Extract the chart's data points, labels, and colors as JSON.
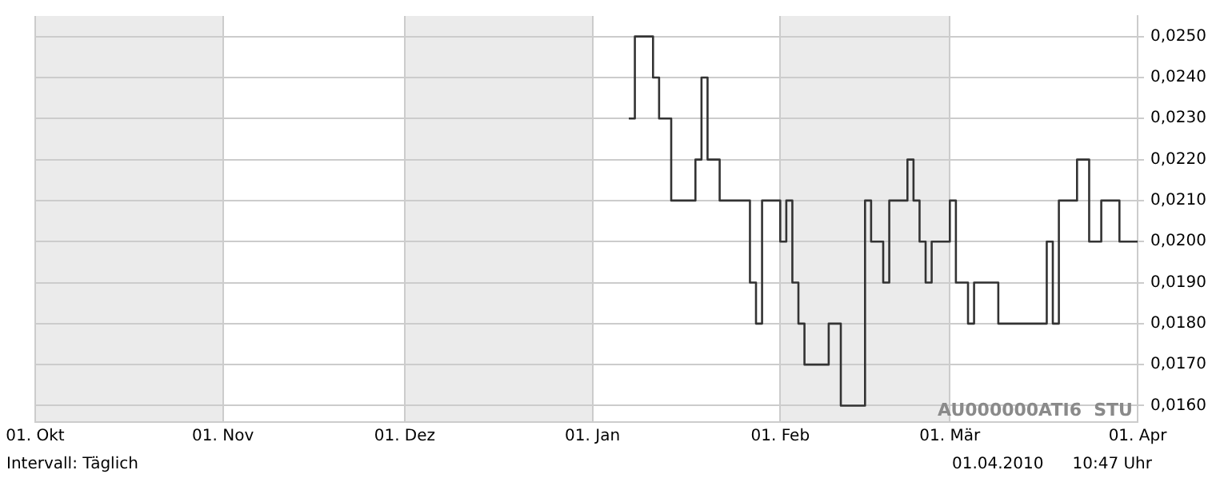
{
  "chart_data": {
    "type": "step",
    "x": [
      "2010-01-07",
      "2010-01-08",
      "2010-01-11",
      "2010-01-12",
      "2010-01-14",
      "2010-01-18",
      "2010-01-19",
      "2010-01-20",
      "2010-01-22",
      "2010-01-27",
      "2010-01-28",
      "2010-01-29",
      "2010-02-01",
      "2010-02-02",
      "2010-02-03",
      "2010-02-04",
      "2010-02-05",
      "2010-02-09",
      "2010-02-11",
      "2010-02-15",
      "2010-02-16",
      "2010-02-18",
      "2010-02-19",
      "2010-02-22",
      "2010-02-23",
      "2010-02-24",
      "2010-02-25",
      "2010-02-26",
      "2010-03-01",
      "2010-03-02",
      "2010-03-04",
      "2010-03-05",
      "2010-03-09",
      "2010-03-17",
      "2010-03-18",
      "2010-03-19",
      "2010-03-22",
      "2010-03-24",
      "2010-03-26",
      "2010-03-29",
      "2010-04-01"
    ],
    "series": [
      {
        "color": "#333333",
        "values": [
          0.023,
          0.025,
          0.024,
          0.023,
          0.021,
          0.022,
          0.024,
          0.022,
          0.021,
          0.019,
          0.018,
          0.021,
          0.02,
          0.021,
          0.019,
          0.018,
          0.017,
          0.018,
          0.016,
          0.021,
          0.02,
          0.019,
          0.021,
          0.022,
          0.021,
          0.02,
          0.019,
          0.02,
          0.021,
          0.019,
          0.018,
          0.019,
          0.018,
          0.02,
          0.018,
          0.021,
          0.022,
          0.02,
          0.021,
          0.02,
          0.02
        ]
      }
    ],
    "xlim": [
      "2009-10-01",
      "2010-04-01"
    ],
    "xticks": [
      {
        "value": "2009-10-01",
        "label": "01. Okt"
      },
      {
        "value": "2009-11-01",
        "label": "01. Nov"
      },
      {
        "value": "2009-12-01",
        "label": "01. Dez"
      },
      {
        "value": "2010-01-01",
        "label": "01. Jan"
      },
      {
        "value": "2010-02-01",
        "label": "01. Feb"
      },
      {
        "value": "2010-03-01",
        "label": "01. Mär"
      },
      {
        "value": "2010-04-01",
        "label": "01. Apr"
      }
    ],
    "ylim": [
      0.0156,
      0.0255
    ],
    "yticks": [
      {
        "value": 0.016,
        "label": "0,0160"
      },
      {
        "value": 0.017,
        "label": "0,0170"
      },
      {
        "value": 0.018,
        "label": "0,0180"
      },
      {
        "value": 0.019,
        "label": "0,0190"
      },
      {
        "value": 0.02,
        "label": "0,0200"
      },
      {
        "value": 0.021,
        "label": "0,0210"
      },
      {
        "value": 0.022,
        "label": "0,0220"
      },
      {
        "value": 0.023,
        "label": "0,0230"
      },
      {
        "value": 0.024,
        "label": "0,0240"
      },
      {
        "value": 0.025,
        "label": "0,0250"
      }
    ],
    "bands": [
      {
        "axis": "x",
        "from": "2009-10-01",
        "to": "2009-11-01",
        "color": "#ebebeb"
      },
      {
        "axis": "x",
        "from": "2009-12-01",
        "to": "2010-01-01",
        "color": "#ebebeb"
      },
      {
        "axis": "x",
        "from": "2010-02-01",
        "to": "2010-03-01",
        "color": "#ebebeb"
      }
    ],
    "annotations": [
      "AU000000ATI6  STU",
      "Intervall: Täglich",
      "01.04.2010",
      "10:47 Uhr"
    ],
    "grid": true,
    "legend": false,
    "marker": "none",
    "line_style": "solid"
  }
}
